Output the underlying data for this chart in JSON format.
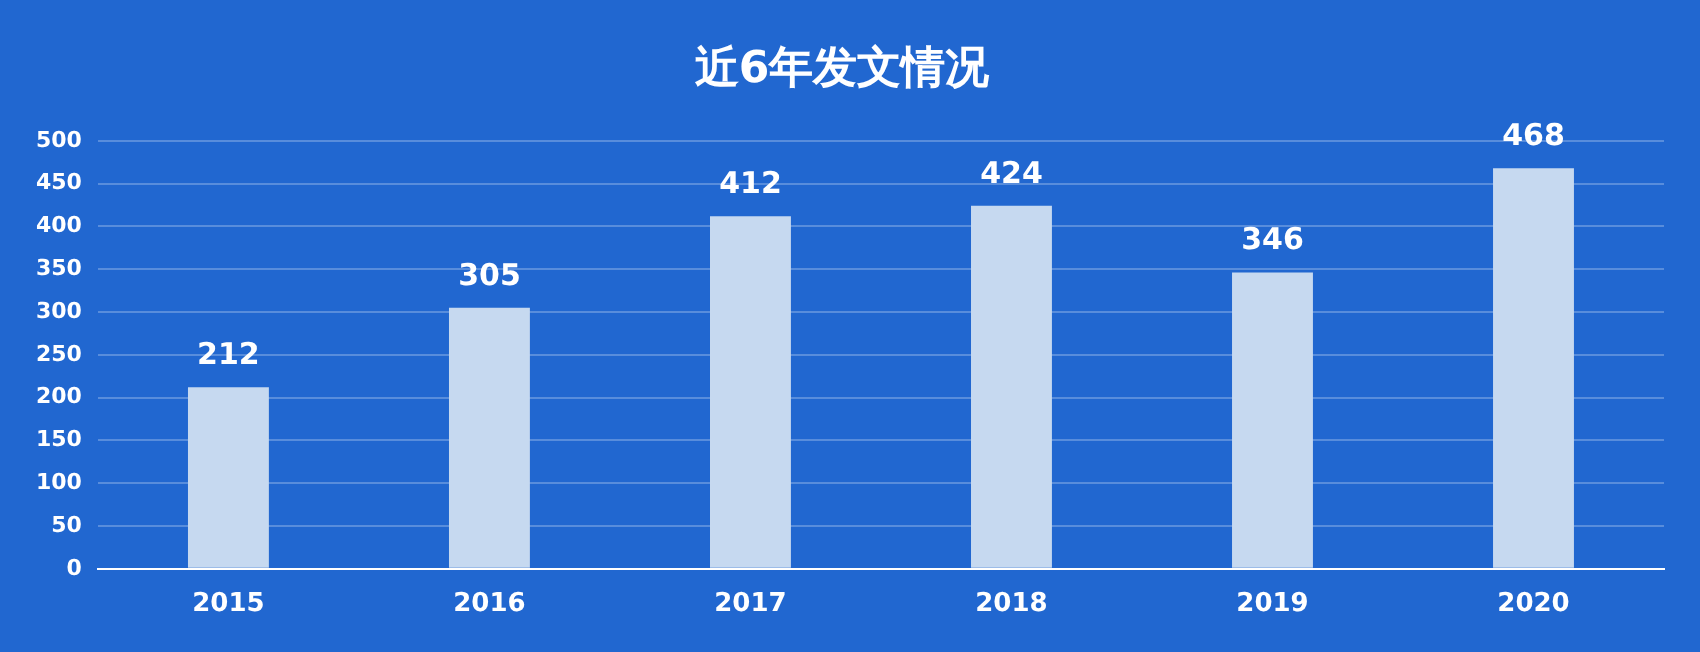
{
  "chart_data": {
    "type": "bar",
    "title": "近6年发文情况",
    "categories": [
      "2015",
      "2016",
      "2017",
      "2018",
      "2019",
      "2020"
    ],
    "values": [
      212,
      305,
      412,
      424,
      346,
      468
    ],
    "color": "#c6d9f0",
    "ylim": [
      0,
      500
    ],
    "yticks": [
      0,
      50,
      100,
      150,
      200,
      250,
      300,
      350,
      400,
      450,
      500
    ],
    "grid": "y",
    "data_labels": true,
    "legend": false
  }
}
